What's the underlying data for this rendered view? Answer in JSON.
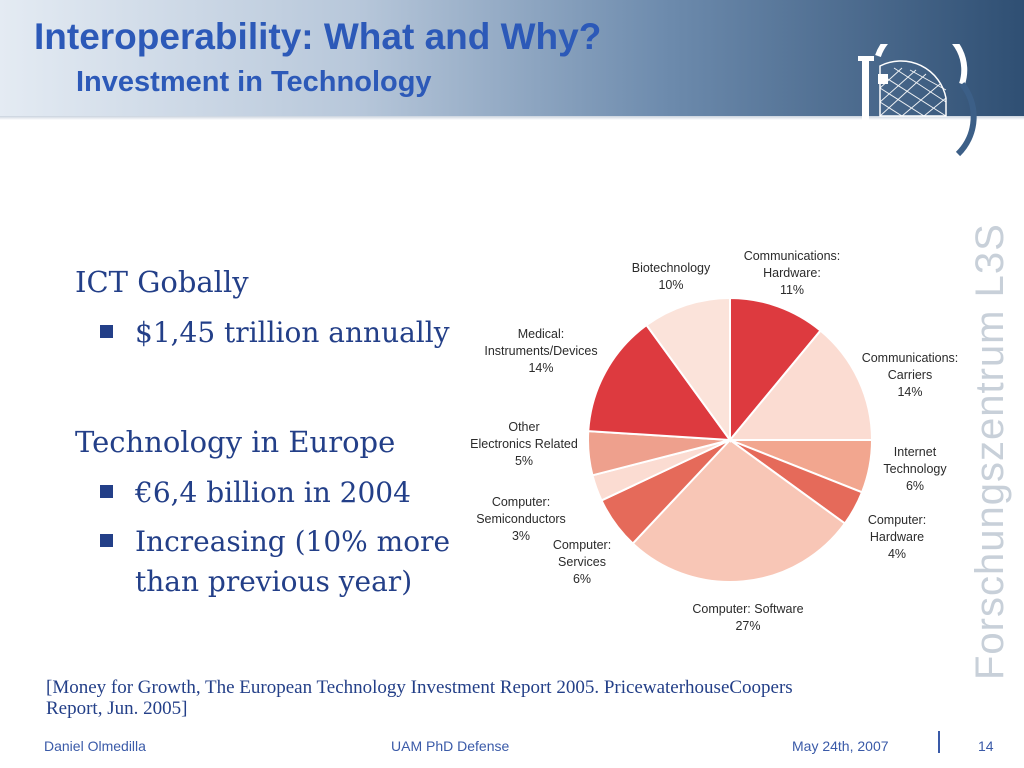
{
  "header": {
    "title": "Interoperability: What and Why?",
    "subtitle": "Investment in Technology"
  },
  "side_brand": "Forschungszentrum L3S",
  "content": {
    "section1": {
      "heading": "ICT Gobally",
      "bullets": [
        "$1,45 trillion annually"
      ]
    },
    "section2": {
      "heading": "Technology in Europe",
      "bullets": [
        "€6,4 billion in 2004",
        "Increasing (10% more",
        "than previous year)"
      ]
    }
  },
  "citation": {
    "line1": "[Money for Growth, The European Technology Investment Report 2005. PricewaterhouseCoopers",
    "line2": "Report, Jun. 2005]"
  },
  "footer": {
    "author": "Daniel Olmedilla",
    "event": "UAM PhD Defense",
    "date": "May 24th, 2007",
    "page": "14"
  },
  "colors": {
    "title": "#2c59b8",
    "body_text": "#233f88"
  },
  "chart_data": {
    "type": "pie",
    "slices": [
      {
        "label": [
          "Communications:",
          "Hardware:",
          "11%"
        ],
        "value": 11,
        "color": "#dd3a3f"
      },
      {
        "label": [
          "Communications:",
          "Carriers",
          "14%"
        ],
        "value": 14,
        "color": "#fbdcd2"
      },
      {
        "label": [
          "Internet",
          "Technology",
          "6%"
        ],
        "value": 6,
        "color": "#f2a68f"
      },
      {
        "label": [
          "Computer:",
          "Hardware",
          "4%"
        ],
        "value": 4,
        "color": "#e56a5a"
      },
      {
        "label": [
          "Computer: Software",
          "27%"
        ],
        "value": 27,
        "color": "#f8c6b6"
      },
      {
        "label": [
          "Computer:",
          "Services",
          "6%"
        ],
        "value": 6,
        "color": "#e56a5a"
      },
      {
        "label": [
          "Computer:",
          "Semiconductors",
          "3%"
        ],
        "value": 3,
        "color": "#fbdcd2"
      },
      {
        "label": [
          "Other",
          "Electronics Related",
          "5%"
        ],
        "value": 5,
        "color": "#eea08d"
      },
      {
        "label": [
          "Medical:",
          "Instruments/Devices",
          "14%"
        ],
        "value": 14,
        "color": "#dd3a3f"
      },
      {
        "label": [
          "Biotechnology",
          "10%"
        ],
        "value": 10,
        "color": "#fbe3da"
      }
    ]
  }
}
